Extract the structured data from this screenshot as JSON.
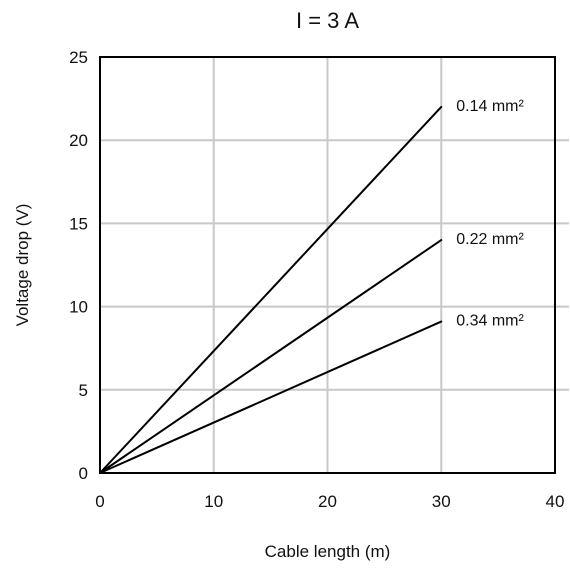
{
  "chart_data": {
    "type": "line",
    "title": "I = 3 A",
    "xlabel": "Cable length (m)",
    "ylabel": "Voltage drop (V)",
    "xlim": [
      0,
      40
    ],
    "ylim": [
      0,
      25
    ],
    "x_ticks": [
      0,
      10,
      20,
      30,
      40
    ],
    "y_ticks": [
      0,
      5,
      10,
      15,
      20,
      25
    ],
    "grid": true,
    "series": [
      {
        "name": "0.14 mm²",
        "x": [
          0,
          30
        ],
        "y": [
          0,
          22
        ],
        "color": "#000000"
      },
      {
        "name": "0.22 mm²",
        "x": [
          0,
          30
        ],
        "y": [
          0,
          14
        ],
        "color": "#000000"
      },
      {
        "name": "0.34 mm²",
        "x": [
          0,
          30
        ],
        "y": [
          0,
          9.1
        ],
        "color": "#000000"
      }
    ],
    "colors": {
      "grid": "#c8c8c8",
      "axis": "#000000",
      "text": "#111111"
    }
  }
}
